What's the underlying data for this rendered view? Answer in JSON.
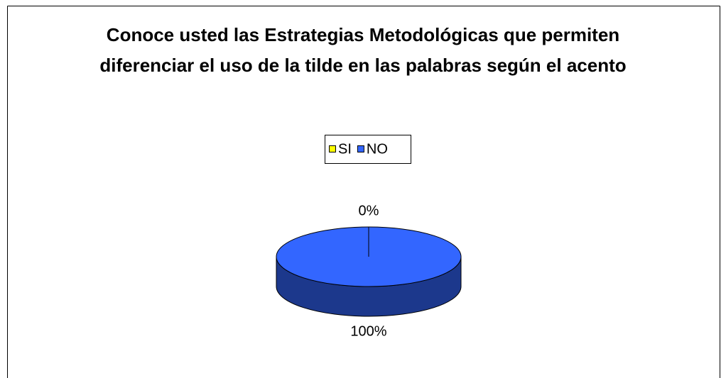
{
  "chart_data": {
    "type": "pie3d",
    "title": "Conoce usted las Estrategias Metodológicas que permiten diferenciar el uso de la tilde en las palabras según el acento",
    "categories": [
      "SI",
      "NO"
    ],
    "values": [
      0,
      100
    ],
    "value_labels": [
      "0%",
      "100%"
    ],
    "colors": [
      "#ffff00",
      "#3366ff"
    ],
    "legend": "top"
  }
}
